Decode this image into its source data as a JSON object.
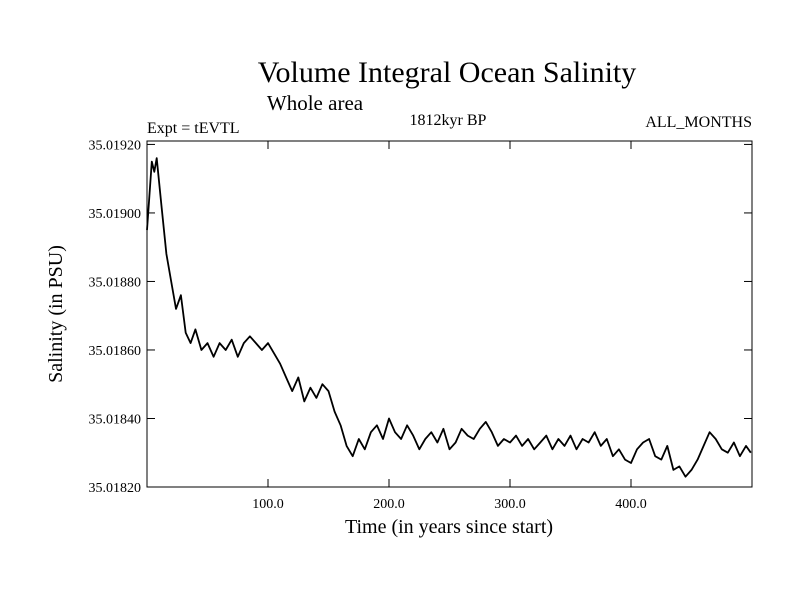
{
  "chart_data": {
    "type": "line",
    "title": "Volume Integral Ocean Salinity",
    "subtitle": "Whole area",
    "annotations": {
      "left": "Expt = tEVTL",
      "center": "1812kyr BP",
      "right": "ALL_MONTHS"
    },
    "xlabel": "Time (in years since start)",
    "ylabel": "Salinity (in PSU)",
    "xlim": [
      0,
      500
    ],
    "ylim": [
      35.0182,
      35.01921
    ],
    "x_ticks": [
      100,
      200,
      300,
      400
    ],
    "x_tick_labels": [
      "100.0",
      "200.0",
      "300.0",
      "400.0"
    ],
    "y_ticks": [
      35.0182,
      35.0184,
      35.0186,
      35.0188,
      35.019,
      35.0192
    ],
    "y_tick_labels": [
      "35.01820",
      "35.01840",
      "35.01860",
      "35.01880",
      "35.01900",
      "35.01920"
    ],
    "grid": false,
    "series": [
      {
        "name": "Salinity",
        "x": [
          0,
          2,
          4,
          6,
          8,
          12,
          16,
          20,
          24,
          28,
          32,
          36,
          40,
          45,
          50,
          55,
          60,
          65,
          70,
          75,
          80,
          85,
          90,
          95,
          100,
          105,
          110,
          115,
          120,
          125,
          130,
          135,
          140,
          145,
          150,
          155,
          160,
          165,
          170,
          175,
          180,
          185,
          190,
          195,
          200,
          205,
          210,
          215,
          220,
          225,
          230,
          235,
          240,
          245,
          250,
          255,
          260,
          265,
          270,
          275,
          280,
          285,
          290,
          295,
          300,
          305,
          310,
          315,
          320,
          325,
          330,
          335,
          340,
          345,
          350,
          355,
          360,
          365,
          370,
          375,
          380,
          385,
          390,
          395,
          400,
          405,
          410,
          415,
          420,
          425,
          430,
          435,
          440,
          445,
          450,
          455,
          460,
          465,
          470,
          475,
          480,
          485,
          490,
          495,
          499
        ],
        "values": [
          35.01895,
          35.01905,
          35.01915,
          35.01912,
          35.01916,
          35.01902,
          35.01888,
          35.0188,
          35.01872,
          35.01876,
          35.01865,
          35.01862,
          35.01866,
          35.0186,
          35.01862,
          35.01858,
          35.01862,
          35.0186,
          35.01863,
          35.01858,
          35.01862,
          35.01864,
          35.01862,
          35.0186,
          35.01862,
          35.01859,
          35.01856,
          35.01852,
          35.01848,
          35.01852,
          35.01845,
          35.01849,
          35.01846,
          35.0185,
          35.01848,
          35.01842,
          35.01838,
          35.01832,
          35.01829,
          35.01834,
          35.01831,
          35.01836,
          35.01838,
          35.01834,
          35.0184,
          35.01836,
          35.01834,
          35.01838,
          35.01835,
          35.01831,
          35.01834,
          35.01836,
          35.01833,
          35.01837,
          35.01831,
          35.01833,
          35.01837,
          35.01835,
          35.01834,
          35.01837,
          35.01839,
          35.01836,
          35.01832,
          35.01834,
          35.01833,
          35.01835,
          35.01832,
          35.01834,
          35.01831,
          35.01833,
          35.01835,
          35.01831,
          35.01834,
          35.01832,
          35.01835,
          35.01831,
          35.01834,
          35.01833,
          35.01836,
          35.01832,
          35.01834,
          35.01829,
          35.01831,
          35.01828,
          35.01827,
          35.01831,
          35.01833,
          35.01834,
          35.01829,
          35.01828,
          35.01832,
          35.01825,
          35.01826,
          35.01823,
          35.01825,
          35.01828,
          35.01832,
          35.01836,
          35.01834,
          35.01831,
          35.0183,
          35.01833,
          35.01829,
          35.01832,
          35.0183
        ]
      }
    ]
  }
}
